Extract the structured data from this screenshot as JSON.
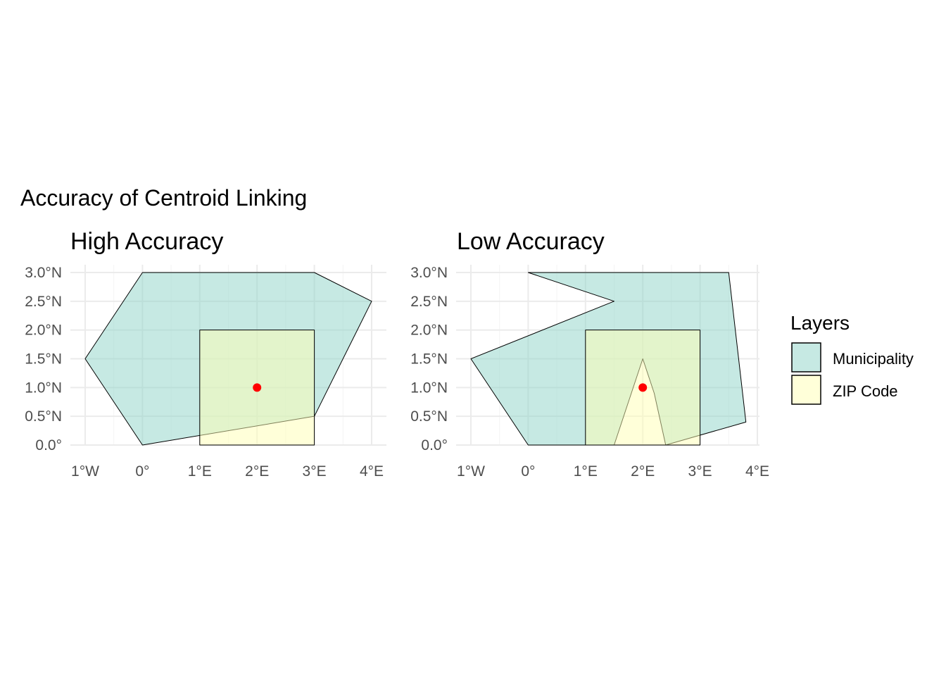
{
  "figure": {
    "title": "Accuracy of Centroid Linking"
  },
  "colors": {
    "municipality": "#8ed3c7",
    "zip_code": "#ffffb3",
    "centroid": "#ff0000",
    "outline": "#000000",
    "grid": "#ebebeb"
  },
  "legend": {
    "title": "Layers",
    "items": [
      {
        "label": "Municipality",
        "color": "#8ed3c7"
      },
      {
        "label": "ZIP Code",
        "color": "#ffffb3"
      }
    ]
  },
  "chart_data": [
    {
      "type": "map",
      "title": "High Accuracy",
      "xlim": [
        -1,
        4
      ],
      "ylim": [
        0,
        3
      ],
      "x_ticks": [
        {
          "value": -1,
          "label": "1°W"
        },
        {
          "value": 0,
          "label": "0°"
        },
        {
          "value": 1,
          "label": "1°E"
        },
        {
          "value": 2,
          "label": "2°E"
        },
        {
          "value": 3,
          "label": "3°E"
        },
        {
          "value": 4,
          "label": "4°E"
        }
      ],
      "y_ticks": [
        {
          "value": 0,
          "label": "0.0°"
        },
        {
          "value": 0.5,
          "label": "0.5°N"
        },
        {
          "value": 1,
          "label": "1.0°N"
        },
        {
          "value": 1.5,
          "label": "1.5°N"
        },
        {
          "value": 2,
          "label": "2.0°N"
        },
        {
          "value": 2.5,
          "label": "2.5°N"
        },
        {
          "value": 3,
          "label": "3.0°N"
        }
      ],
      "grid": true,
      "municipality": [
        [
          0,
          0
        ],
        [
          3,
          0.5
        ],
        [
          4,
          2.5
        ],
        [
          3,
          3
        ],
        [
          0,
          3
        ],
        [
          -1,
          1.5
        ]
      ],
      "zip_code": [
        [
          1,
          0
        ],
        [
          3,
          0
        ],
        [
          3,
          2
        ],
        [
          1,
          2
        ]
      ],
      "centroid": [
        2,
        1
      ]
    },
    {
      "type": "map",
      "title": "Low Accuracy",
      "xlim": [
        -1,
        4
      ],
      "ylim": [
        0,
        3
      ],
      "x_ticks": [
        {
          "value": -1,
          "label": "1°W"
        },
        {
          "value": 0,
          "label": "0°"
        },
        {
          "value": 1,
          "label": "1°E"
        },
        {
          "value": 2,
          "label": "2°E"
        },
        {
          "value": 3,
          "label": "3°E"
        },
        {
          "value": 4,
          "label": "4°E"
        }
      ],
      "y_ticks": [
        {
          "value": 0,
          "label": "0.0°"
        },
        {
          "value": 0.5,
          "label": "0.5°N"
        },
        {
          "value": 1,
          "label": "1.0°N"
        },
        {
          "value": 1.5,
          "label": "1.5°N"
        },
        {
          "value": 2,
          "label": "2.0°N"
        },
        {
          "value": 2.5,
          "label": "2.5°N"
        },
        {
          "value": 3,
          "label": "3.0°N"
        }
      ],
      "grid": true,
      "municipality": [
        [
          0,
          3
        ],
        [
          3.5,
          3
        ],
        [
          3.8,
          0.4
        ],
        [
          2.4,
          0
        ],
        [
          2.2,
          0.9
        ],
        [
          2,
          1.5
        ],
        [
          1.5,
          0
        ],
        [
          0,
          0
        ],
        [
          -1,
          1.5
        ],
        [
          1.5,
          2.5
        ]
      ],
      "zip_code": [
        [
          1,
          0
        ],
        [
          3,
          0
        ],
        [
          3,
          2
        ],
        [
          1,
          2
        ]
      ],
      "centroid": [
        2,
        1
      ]
    }
  ]
}
